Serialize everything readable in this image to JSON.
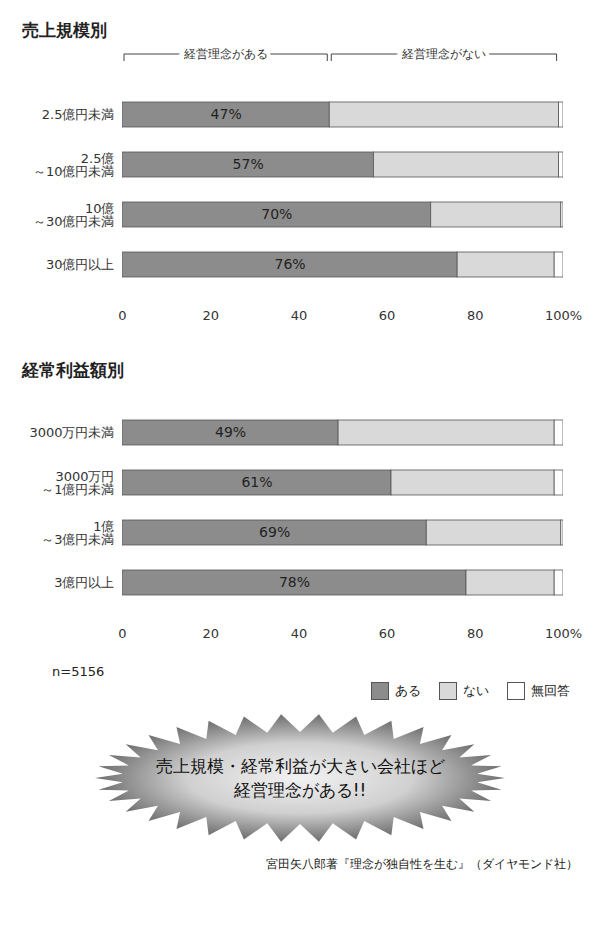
{
  "chart_data": [
    {
      "type": "bar",
      "orientation": "horizontal",
      "stacked": true,
      "data_labels": true,
      "title": "売上規模別",
      "annotations": [
        "経営理念がある",
        "経営理念がない"
      ],
      "categories": [
        "2.5億円未満",
        "2.5億\n～10億円未満",
        "10億\n～30億円未満",
        "30億円以上"
      ],
      "series": [
        {
          "name": "ある",
          "color": "#8c8c8c",
          "values": [
            47,
            57,
            70,
            76
          ],
          "value_labels": [
            "47%",
            "57%",
            "70%",
            "76%"
          ]
        },
        {
          "name": "ない",
          "color": "#d9d9d9",
          "values": [
            52,
            42,
            29.5,
            22
          ]
        },
        {
          "name": "無回答",
          "color": "#ffffff",
          "values": [
            1,
            1,
            0.5,
            2
          ]
        }
      ],
      "xlim": [
        0,
        100
      ],
      "xticks": [
        0,
        20,
        40,
        60,
        80,
        {
          "value": 100,
          "label": "100%"
        }
      ]
    },
    {
      "type": "bar",
      "orientation": "horizontal",
      "stacked": true,
      "data_labels": true,
      "legend": "bottom",
      "title": "経常利益額別",
      "categories": [
        "3000万円未満",
        "3000万円\n～1億円未満",
        "1億\n～3億円未満",
        "3億円以上"
      ],
      "series": [
        {
          "name": "ある",
          "color": "#8c8c8c",
          "values": [
            49,
            61,
            69,
            78
          ],
          "value_labels": [
            "49%",
            "61%",
            "69%",
            "78%"
          ]
        },
        {
          "name": "ない",
          "color": "#d9d9d9",
          "values": [
            49,
            37,
            30.5,
            20
          ]
        },
        {
          "name": "無回答",
          "color": "#ffffff",
          "values": [
            2,
            2,
            0.5,
            2
          ]
        }
      ],
      "xlim": [
        0,
        100
      ],
      "xticks": [
        0,
        20,
        40,
        60,
        80,
        {
          "value": 100,
          "label": "100%"
        }
      ]
    }
  ],
  "note": "n=5156",
  "callout": [
    "売上規模・経常利益が大きい会社ほど",
    "経営理念がある!!"
  ],
  "source": "宮田矢八郎著『理念が独自性を生む』（ダイヤモンド社）"
}
